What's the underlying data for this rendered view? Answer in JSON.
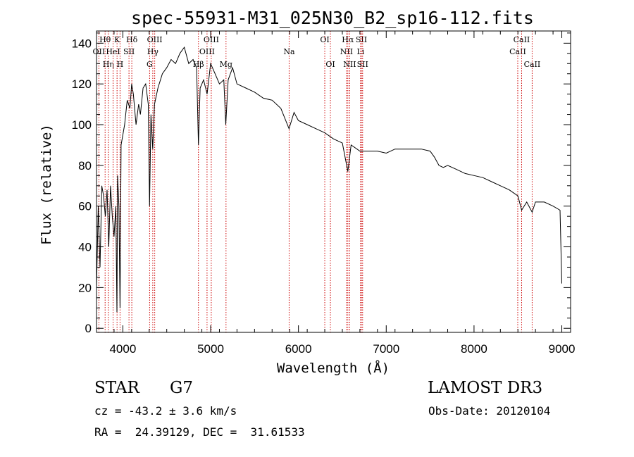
{
  "chart_data": {
    "type": "line",
    "title": "spec-55931-M31_025N30_B2_sp16-112.fits",
    "xlabel": "Wavelength (Å)",
    "ylabel": "Flux (relative)",
    "xlim": [
      3700,
      9100
    ],
    "ylim": [
      -2,
      146
    ],
    "xticks": [
      4000,
      5000,
      6000,
      7000,
      8000,
      9000
    ],
    "yticks": [
      0,
      20,
      40,
      60,
      80,
      100,
      120,
      140
    ],
    "grid": false,
    "series": [
      {
        "x": [
          3700,
          3720,
          3740,
          3760,
          3780,
          3800,
          3820,
          3840,
          3860,
          3880,
          3900,
          3920,
          3933,
          3940,
          3955,
          3968,
          3980,
          4000,
          4020,
          4050,
          4080,
          4100,
          4120,
          4150,
          4180,
          4200,
          4230,
          4260,
          4290,
          4304,
          4320,
          4340,
          4360,
          4400,
          4450,
          4500,
          4550,
          4600,
          4650,
          4700,
          4750,
          4800,
          4840,
          4861,
          4880,
          4920,
          4960,
          5000,
          5050,
          5100,
          5150,
          5172,
          5200,
          5250,
          5300,
          5400,
          5500,
          5600,
          5700,
          5800,
          5893,
          5950,
          6000,
          6100,
          6200,
          6300,
          6400,
          6500,
          6563,
          6600,
          6700,
          6800,
          6900,
          7000,
          7100,
          7200,
          7300,
          7400,
          7500,
          7550,
          7600,
          7650,
          7700,
          7800,
          7900,
          8000,
          8100,
          8200,
          8300,
          8400,
          8500,
          8542,
          8600,
          8662,
          8700,
          8800,
          8900,
          8980,
          9000
        ],
        "values": [
          20,
          60,
          30,
          70,
          65,
          55,
          68,
          40,
          70,
          55,
          45,
          60,
          8,
          75,
          60,
          10,
          90,
          95,
          100,
          112,
          108,
          120,
          115,
          100,
          110,
          105,
          118,
          120,
          110,
          60,
          105,
          88,
          110,
          118,
          125,
          128,
          132,
          130,
          135,
          138,
          130,
          132,
          128,
          90,
          118,
          122,
          115,
          130,
          125,
          120,
          122,
          100,
          122,
          128,
          120,
          118,
          116,
          113,
          112,
          108,
          98,
          106,
          102,
          100,
          98,
          96,
          93,
          91,
          77,
          90,
          87,
          87,
          87,
          86,
          88,
          88,
          88,
          88,
          87,
          84,
          80,
          79,
          80,
          78,
          76,
          75,
          74,
          72,
          70,
          68,
          65,
          58,
          62,
          57,
          62,
          62,
          60,
          58,
          22
        ]
      }
    ],
    "line_markers": [
      {
        "label": "OII",
        "x": 3727,
        "row": 1
      },
      {
        "label": "Hθ",
        "x": 3798,
        "row": 0
      },
      {
        "label": "Hη",
        "x": 3835,
        "row": 2
      },
      {
        "label": "HeI",
        "x": 3889,
        "row": 1
      },
      {
        "label": "K",
        "x": 3934,
        "row": 0
      },
      {
        "label": "H",
        "x": 3968,
        "row": 2
      },
      {
        "label": "SII",
        "x": 4070,
        "row": 1
      },
      {
        "label": "Hδ",
        "x": 4102,
        "row": 0
      },
      {
        "label": "G",
        "x": 4305,
        "row": 2
      },
      {
        "label": "Hγ",
        "x": 4341,
        "row": 1
      },
      {
        "label": "OIII",
        "x": 4363,
        "row": 0
      },
      {
        "label": "Hβ",
        "x": 4861,
        "row": 2
      },
      {
        "label": "OIII",
        "x": 4959,
        "row": 1
      },
      {
        "label": "OIII",
        "x": 5007,
        "row": 0
      },
      {
        "label": "Mg",
        "x": 5175,
        "row": 2
      },
      {
        "label": "Na",
        "x": 5894,
        "row": 1
      },
      {
        "label": "OI",
        "x": 6300,
        "row": 0
      },
      {
        "label": "OI",
        "x": 6364,
        "row": 2
      },
      {
        "label": "NII",
        "x": 6548,
        "row": 1
      },
      {
        "label": "Hα",
        "x": 6563,
        "row": 0
      },
      {
        "label": "NII",
        "x": 6584,
        "row": 2
      },
      {
        "label": "Li",
        "x": 6708,
        "row": 1
      },
      {
        "label": "SII",
        "x": 6717,
        "row": 0
      },
      {
        "label": "SII",
        "x": 6731,
        "row": 2
      },
      {
        "label": "CaII",
        "x": 8498,
        "row": 1
      },
      {
        "label": "CaII",
        "x": 8542,
        "row": 0
      },
      {
        "label": "CaII",
        "x": 8662,
        "row": 2
      }
    ]
  },
  "info": {
    "class": "STAR",
    "subclass": "G7",
    "survey": "LAMOST DR3",
    "cz": "cz = -43.2 ± 3.6 km/s",
    "obs_date": "Obs-Date: 20120104",
    "coords": "RA =  24.39129, DEC =  31.61533"
  },
  "colors": {
    "spectrum": "#000000",
    "line_markers": "#cc0000",
    "axes": "#000000",
    "background": "#ffffff"
  }
}
